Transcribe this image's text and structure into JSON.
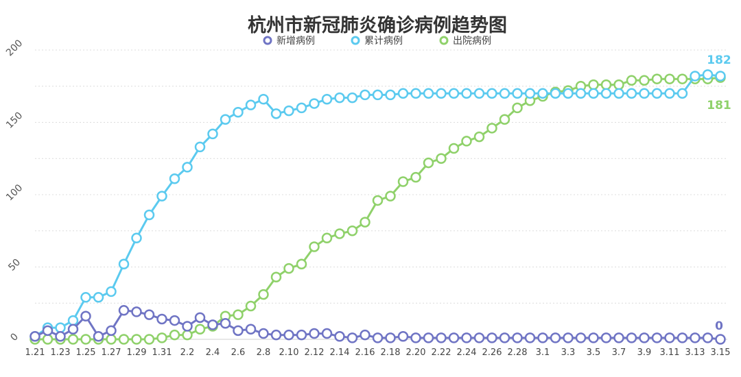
{
  "chart_data": {
    "type": "line",
    "title": "杭州市新冠肺炎确诊病例趋势图",
    "x": [
      "1.21",
      "1.22",
      "1.23",
      "1.24",
      "1.25",
      "1.26",
      "1.27",
      "1.28",
      "1.29",
      "1.30",
      "1.31",
      "2.1",
      "2.2",
      "2.3",
      "2.4",
      "2.5",
      "2.6",
      "2.7",
      "2.8",
      "2.9",
      "2.10",
      "2.11",
      "2.12",
      "2.13",
      "2.14",
      "2.15",
      "2.16",
      "2.17",
      "2.18",
      "2.19",
      "2.20",
      "2.21",
      "2.22",
      "2.23",
      "2.24",
      "2.25",
      "2.26",
      "2.27",
      "2.28",
      "2.29",
      "3.1",
      "3.2",
      "3.3",
      "3.4",
      "3.5",
      "3.6",
      "3.7",
      "3.8",
      "3.9",
      "3.10",
      "3.11",
      "3.12",
      "3.13",
      "3.14",
      "3.15"
    ],
    "x_tick_labels": [
      "1.21",
      "1.23",
      "1.25",
      "1.27",
      "1.29",
      "1.31",
      "2.2",
      "2.4",
      "2.6",
      "2.8",
      "2.10",
      "2.12",
      "2.14",
      "2.16",
      "2.18",
      "2.20",
      "2.22",
      "2.24",
      "2.26",
      "2.28",
      "3.1",
      "3.3",
      "3.5",
      "3.7",
      "3.9",
      "3.11",
      "3.13",
      "3.15"
    ],
    "y_ticks": [
      0,
      50,
      100,
      150,
      200
    ],
    "ylim": [
      0,
      200
    ],
    "grid": true,
    "legend_position": "top-center",
    "series": [
      {
        "name": "新增病例",
        "color": "#6f74c4",
        "values": [
          2,
          6,
          2,
          7,
          16,
          2,
          6,
          20,
          19,
          17,
          14,
          13,
          9,
          15,
          10,
          11,
          6,
          7,
          4,
          3,
          3,
          3,
          4,
          4,
          2,
          1,
          3,
          1,
          1,
          2,
          1,
          1,
          1,
          1,
          1,
          1,
          1,
          1,
          1,
          1,
          1,
          1,
          1,
          1,
          1,
          1,
          1,
          1,
          1,
          1,
          1,
          1,
          1,
          1,
          0
        ],
        "end_label": "0"
      },
      {
        "name": "累计病例",
        "color": "#5bcaef",
        "values": [
          2,
          8,
          8,
          13,
          29,
          29,
          33,
          52,
          70,
          86,
          99,
          111,
          119,
          133,
          142,
          152,
          157,
          162,
          166,
          156,
          158,
          160,
          163,
          166,
          167,
          167,
          169,
          169,
          169,
          170,
          170,
          170,
          170,
          170,
          170,
          170,
          170,
          170,
          170,
          170,
          170,
          170,
          170,
          170,
          170,
          170,
          170,
          170,
          170,
          170,
          170,
          170,
          182,
          183,
          182
        ],
        "end_label": "182"
      },
      {
        "name": "出院病例",
        "color": "#8fd16a",
        "values": [
          0,
          0,
          0,
          0,
          0,
          0,
          0,
          0,
          0,
          0,
          1,
          3,
          3,
          7,
          9,
          16,
          17,
          23,
          31,
          43,
          49,
          52,
          64,
          70,
          73,
          75,
          81,
          96,
          99,
          109,
          112,
          122,
          125,
          132,
          137,
          140,
          146,
          152,
          160,
          165,
          168,
          171,
          172,
          175,
          176,
          176,
          176,
          179,
          179,
          180,
          180,
          180,
          180,
          180,
          181
        ],
        "end_label": "181"
      }
    ]
  }
}
